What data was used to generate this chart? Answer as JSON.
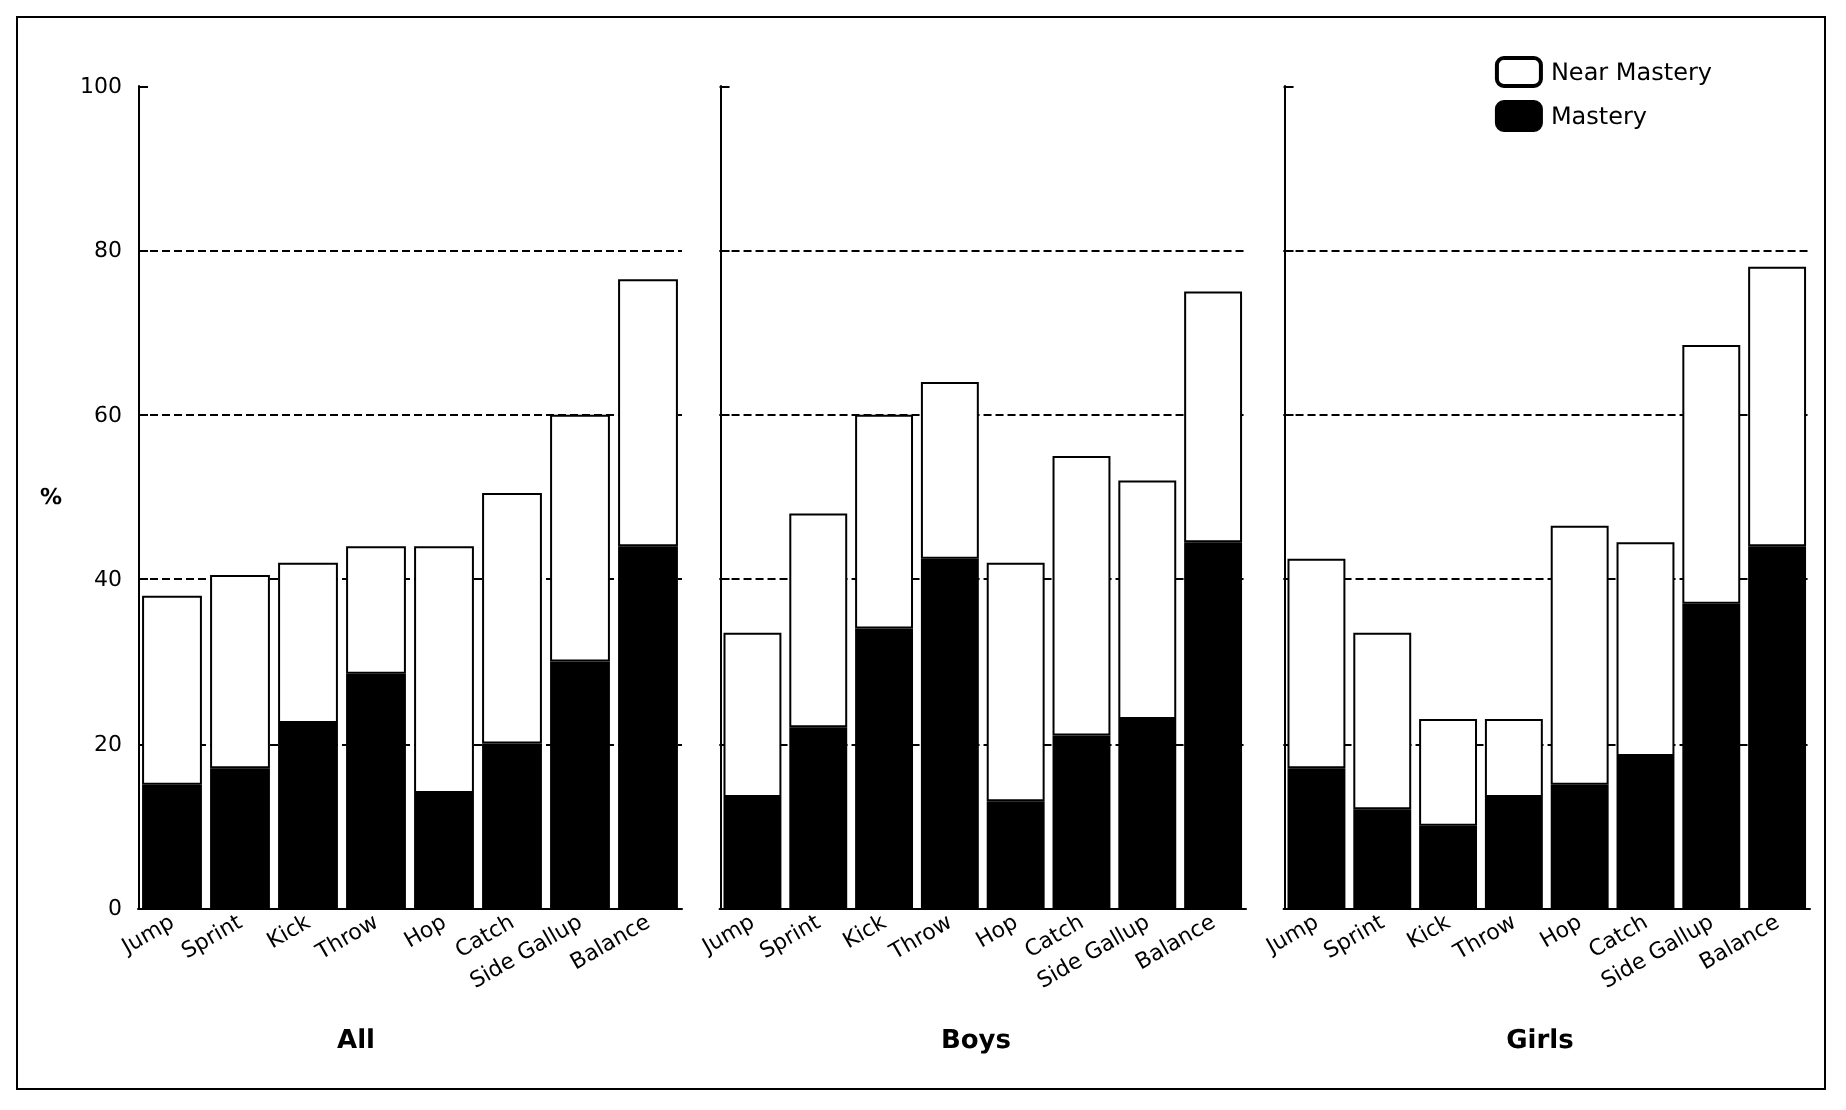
{
  "chart_data": [
    {
      "type": "bar",
      "title": "All",
      "ylabel": "%",
      "stacked": true,
      "categories": [
        "Jump",
        "Sprint",
        "Kick",
        "Throw",
        "Hop",
        "Catch",
        "Side Gallup",
        "Balance"
      ],
      "series": [
        {
          "color": "#000000",
          "values": [
            15,
            17,
            22.5,
            28.5,
            14,
            20,
            30,
            44
          ]
        },
        {
          "color": "#ffffff",
          "values": [
            23,
            23.5,
            19.5,
            15.5,
            30,
            30.5,
            30,
            32.5
          ]
        }
      ],
      "ylim": [
        0,
        100
      ],
      "yticks": [
        0,
        20,
        40,
        60,
        80,
        100
      ],
      "grid": "y",
      "legend": false
    },
    {
      "type": "bar",
      "title": "Boys",
      "stacked": true,
      "categories": [
        "Jump",
        "Sprint",
        "Kick",
        "Throw",
        "Hop",
        "Catch",
        "Side Gallup",
        "Balance"
      ],
      "series": [
        {
          "color": "#000000",
          "values": [
            13.5,
            22,
            34,
            42.5,
            13,
            21,
            23,
            44.5
          ]
        },
        {
          "color": "#ffffff",
          "values": [
            20,
            26,
            26,
            21.5,
            29,
            34,
            29,
            30.5
          ]
        }
      ],
      "ylim": [
        0,
        100
      ],
      "yticks": [
        0,
        20,
        40,
        60,
        80,
        100
      ],
      "grid": "y",
      "legend": false,
      "tick_labels": "x"
    },
    {
      "type": "bar",
      "title": "Girls",
      "stacked": true,
      "categories": [
        "Jump",
        "Sprint",
        "Kick",
        "Throw",
        "Hop",
        "Catch",
        "Side Gallup",
        "Balance"
      ],
      "series": [
        {
          "name": "Mastery",
          "color": "#000000",
          "values": [
            17,
            12,
            10,
            13.5,
            15,
            18.5,
            37,
            44
          ]
        },
        {
          "name": "Near Mastery",
          "color": "#ffffff",
          "values": [
            25.5,
            21.5,
            13,
            9.5,
            31.5,
            26,
            31.5,
            34
          ]
        }
      ],
      "ylim": [
        0,
        100
      ],
      "yticks": [
        0,
        20,
        40,
        60,
        80,
        100
      ],
      "grid": "y",
      "legend": "top right",
      "tick_labels": "x"
    }
  ]
}
